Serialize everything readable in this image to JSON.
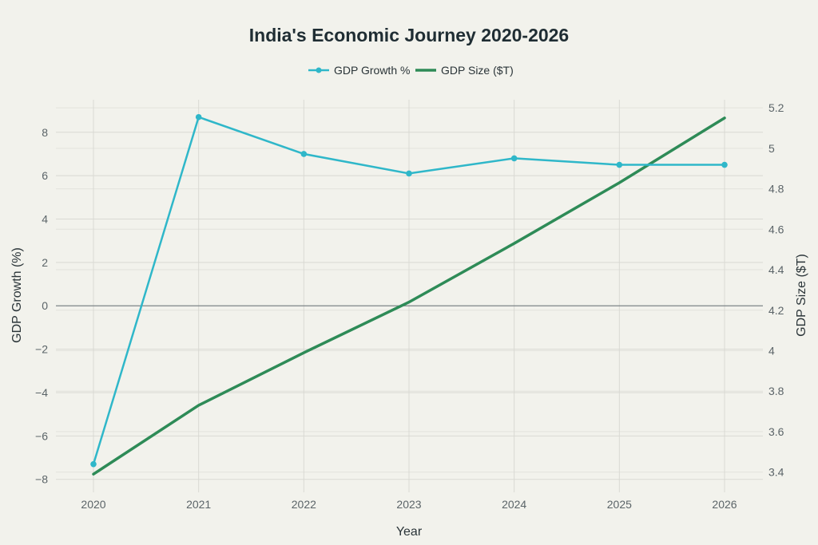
{
  "chart_data": {
    "type": "line",
    "title": "India's Economic Journey 2020-2026",
    "xlabel": "Year",
    "ylabel": "GDP Growth (%)",
    "y2label": "GDP Size ($T)",
    "categories": [
      "2020",
      "2021",
      "2022",
      "2023",
      "2024",
      "2025",
      "2026"
    ],
    "ylim": [
      -8.6,
      9.5
    ],
    "y2lim": [
      3.3,
      5.24
    ],
    "yticks": [
      -8,
      -6,
      -4,
      -2,
      0,
      2,
      4,
      6,
      8
    ],
    "y2ticks": [
      3.4,
      3.6,
      3.8,
      4,
      4.2,
      4.4,
      4.6,
      4.8,
      5,
      5.2
    ],
    "ytick_labels": [
      "−8",
      "−6",
      "−4",
      "−2",
      "0",
      "2",
      "4",
      "6",
      "8"
    ],
    "y2tick_labels": [
      "3.4",
      "3.6",
      "3.8",
      "4",
      "4.2",
      "4.4",
      "4.6",
      "4.8",
      "5",
      "5.2"
    ],
    "grid": true,
    "legend_position": "top-center",
    "series": [
      {
        "name": "GDP Growth %",
        "axis": "left",
        "color": "#2fb7c9",
        "markers": true,
        "values": [
          -7.3,
          8.7,
          7.0,
          6.1,
          6.8,
          6.5,
          6.5
        ]
      },
      {
        "name": "GDP Size ($T)",
        "axis": "right",
        "color": "#2e8b57",
        "markers": false,
        "values": [
          3.39,
          3.73,
          3.99,
          4.24,
          4.53,
          4.83,
          5.15
        ]
      }
    ]
  }
}
